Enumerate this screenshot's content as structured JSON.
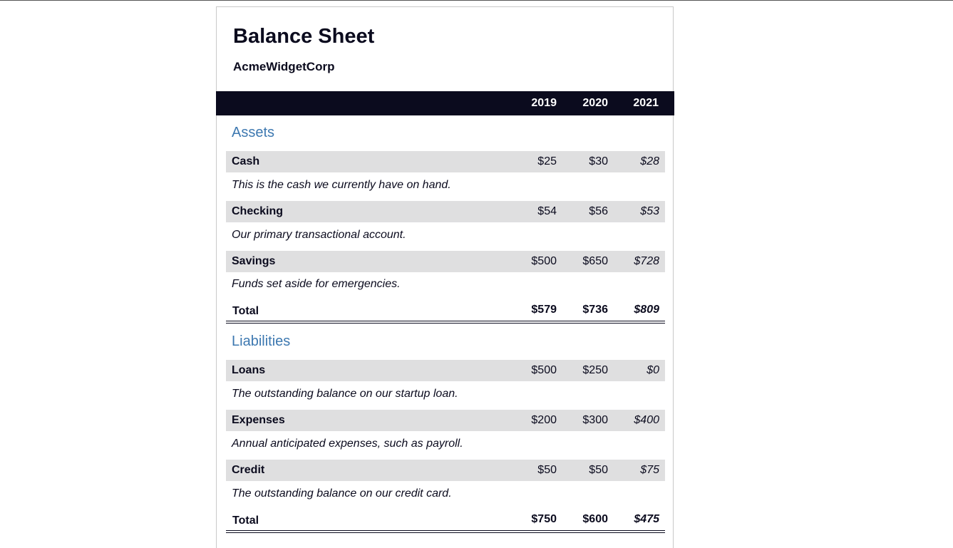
{
  "title": "Balance Sheet",
  "company": "AcmeWidgetCorp",
  "years": [
    "2019",
    "2020",
    "2021"
  ],
  "assets": {
    "heading": "Assets",
    "items": [
      {
        "label": "Cash",
        "values": [
          "$25",
          "$30",
          "$28"
        ],
        "description": "This is the cash we currently have on hand."
      },
      {
        "label": "Checking",
        "values": [
          "$54",
          "$56",
          "$53"
        ],
        "description": "Our primary transactional account."
      },
      {
        "label": "Savings",
        "values": [
          "$500",
          "$650",
          "$728"
        ],
        "description": "Funds set aside for emergencies."
      }
    ],
    "total": {
      "label": "Total",
      "values": [
        "$579",
        "$736",
        "$809"
      ]
    }
  },
  "liabilities": {
    "heading": "Liabilities",
    "items": [
      {
        "label": "Loans",
        "values": [
          "$500",
          "$250",
          "$0"
        ],
        "description": "The outstanding balance on our startup loan."
      },
      {
        "label": "Expenses",
        "values": [
          "$200",
          "$300",
          "$400"
        ],
        "description": "Annual anticipated expenses, such as payroll."
      },
      {
        "label": "Credit",
        "values": [
          "$50",
          "$50",
          "$75"
        ],
        "description": "The outstanding balance on our credit card."
      }
    ],
    "total": {
      "label": "Total",
      "values": [
        "$750",
        "$600",
        "$475"
      ]
    }
  },
  "colors": {
    "header_bg": "#0b0b1e",
    "section_heading": "#3d78b0",
    "row_bg": "#dfdfe0"
  }
}
